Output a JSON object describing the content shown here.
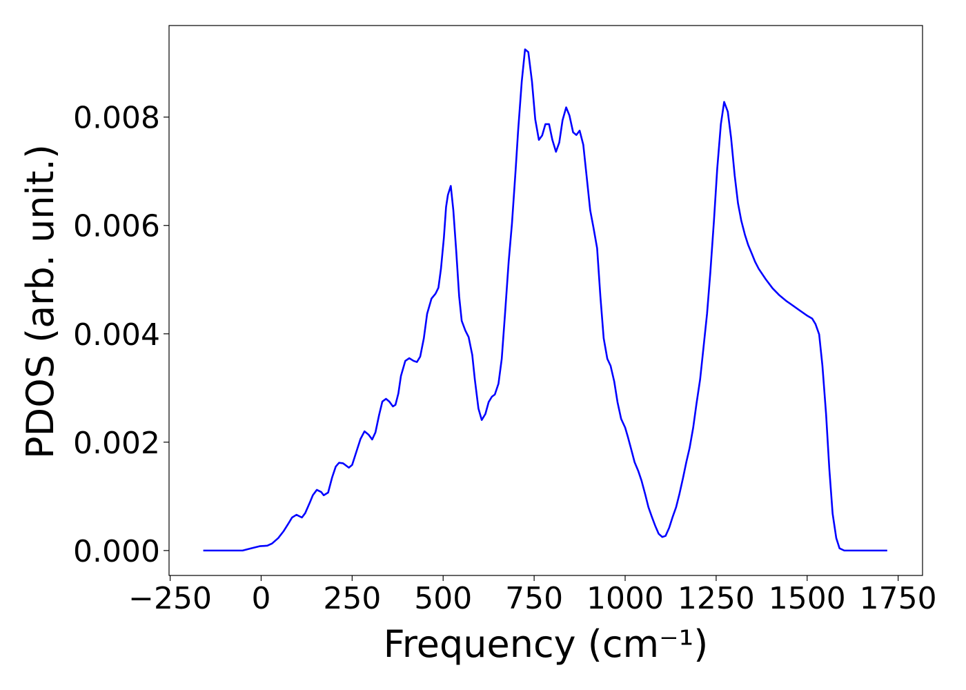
{
  "chart_data": {
    "type": "line",
    "xlabel": "Frequency (cm⁻¹)",
    "ylabel": "PDOS (arb. unit.)",
    "x": [
      -159,
      -51,
      -28,
      -4,
      17,
      30,
      47,
      62,
      76,
      85,
      97,
      112,
      121,
      134,
      142,
      153,
      165,
      172,
      184,
      195,
      205,
      214,
      225,
      241,
      250,
      261,
      273,
      284,
      295,
      305,
      314,
      324,
      333,
      343,
      352,
      362,
      369,
      377,
      384,
      396,
      407,
      419,
      428,
      437,
      447,
      456,
      468,
      479,
      487,
      494,
      502,
      508,
      513,
      521,
      528,
      536,
      544,
      551,
      561,
      570,
      580,
      587,
      597,
      606,
      616,
      625,
      634,
      642,
      652,
      661,
      670,
      680,
      689,
      699,
      706,
      716,
      725,
      734,
      744,
      753,
      763,
      772,
      781,
      791,
      800,
      810,
      819,
      828,
      838,
      847,
      857,
      866,
      875,
      885,
      894,
      904,
      913,
      923,
      932,
      941,
      951,
      960,
      970,
      979,
      989,
      1000,
      1007,
      1017,
      1026,
      1036,
      1045,
      1055,
      1064,
      1074,
      1083,
      1092,
      1102,
      1111,
      1121,
      1130,
      1140,
      1149,
      1159,
      1168,
      1177,
      1187,
      1196,
      1206,
      1215,
      1225,
      1234,
      1244,
      1253,
      1263,
      1272,
      1282,
      1291,
      1301,
      1310,
      1319,
      1329,
      1338,
      1348,
      1357,
      1367,
      1386,
      1405,
      1424,
      1442,
      1461,
      1480,
      1499,
      1514,
      1523,
      1533,
      1542,
      1552,
      1561,
      1570,
      1580,
      1589,
      1602,
      1720
    ],
    "series": [
      {
        "name": "PDOS",
        "color": "#0000ff",
        "values": [
          0,
          0,
          4e-05,
          8e-05,
          9e-05,
          0.00013,
          0.00023,
          0.00036,
          0.00051,
          0.00061,
          0.00066,
          0.00061,
          0.00069,
          0.00089,
          0.00102,
          0.00112,
          0.00108,
          0.00102,
          0.00107,
          0.00135,
          0.00155,
          0.00162,
          0.00161,
          0.00153,
          0.00158,
          0.00181,
          0.00206,
          0.0022,
          0.00214,
          0.00205,
          0.00218,
          0.0025,
          0.00275,
          0.0028,
          0.00275,
          0.00266,
          0.00269,
          0.0029,
          0.00322,
          0.0035,
          0.00355,
          0.0035,
          0.00348,
          0.00358,
          0.00392,
          0.00437,
          0.00465,
          0.00474,
          0.00485,
          0.0052,
          0.00577,
          0.00634,
          0.00656,
          0.00673,
          0.00628,
          0.00552,
          0.00469,
          0.00424,
          0.00406,
          0.00394,
          0.00361,
          0.00316,
          0.00262,
          0.00241,
          0.00252,
          0.00274,
          0.00284,
          0.00288,
          0.00308,
          0.00354,
          0.00437,
          0.00533,
          0.00603,
          0.00701,
          0.00775,
          0.00866,
          0.00925,
          0.0092,
          0.00866,
          0.00796,
          0.00758,
          0.00766,
          0.00787,
          0.00787,
          0.00758,
          0.00736,
          0.00753,
          0.00794,
          0.00818,
          0.00803,
          0.00772,
          0.00767,
          0.00775,
          0.00749,
          0.00692,
          0.00628,
          0.00596,
          0.00558,
          0.00469,
          0.00392,
          0.00354,
          0.00341,
          0.00312,
          0.00274,
          0.00243,
          0.00227,
          0.00211,
          0.00186,
          0.00163,
          0.00147,
          0.00129,
          0.00104,
          0.0008,
          0.00061,
          0.00045,
          0.00031,
          0.00025,
          0.00027,
          0.00042,
          0.00061,
          0.0008,
          0.00104,
          0.00134,
          0.00163,
          0.00189,
          0.00227,
          0.00271,
          0.00316,
          0.00373,
          0.00437,
          0.00513,
          0.00609,
          0.00705,
          0.00787,
          0.00828,
          0.0081,
          0.00762,
          0.00692,
          0.00641,
          0.00609,
          0.00583,
          0.00564,
          0.00548,
          0.00533,
          0.0052,
          0.00501,
          0.00484,
          0.00471,
          0.00461,
          0.00452,
          0.00443,
          0.00434,
          0.00428,
          0.00418,
          0.00399,
          0.00341,
          0.00252,
          0.0015,
          0.00068,
          0.00023,
          4e-05,
          0,
          0
        ]
      }
    ],
    "xlim": [
      -253,
      1817
    ],
    "ylim": [
      -0.00046,
      0.00969
    ],
    "xticks": [
      {
        "value": -250,
        "label": "−250"
      },
      0,
      250,
      500,
      750,
      1000,
      1250,
      1500,
      1750
    ],
    "yticks": [
      {
        "value": 0,
        "label": "0.000"
      },
      0.002,
      0.004,
      0.006,
      0.008
    ],
    "grid": false
  }
}
